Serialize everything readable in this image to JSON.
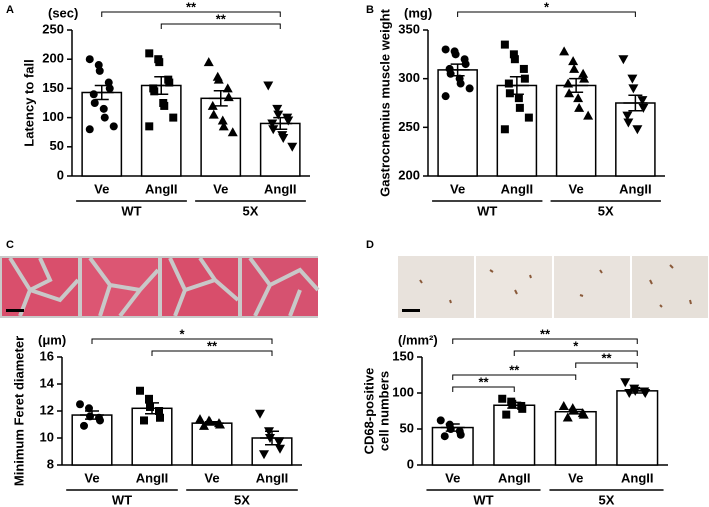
{
  "chart_data": [
    {
      "type": "bar",
      "panel": "A",
      "y_label": "Latency to fall",
      "y_unit": "(sec)",
      "categories": [
        "Ve",
        "AngII",
        "Ve",
        "AngII"
      ],
      "groups": [
        "WT",
        "5X"
      ],
      "markers": [
        "circle",
        "square",
        "triangle",
        "triangle-down"
      ],
      "values": [
        143,
        155,
        133,
        90
      ],
      "errors": [
        12,
        15,
        13,
        10
      ],
      "points": [
        [
          200,
          190,
          180,
          160,
          150,
          140,
          125,
          115,
          100,
          85,
          80
        ],
        [
          210,
          200,
          195,
          165,
          160,
          150,
          145,
          125,
          120,
          100,
          85
        ],
        [
          195,
          170,
          165,
          150,
          135,
          120,
          105,
          95,
          85,
          75
        ],
        [
          155,
          115,
          105,
          100,
          95,
          90,
          80,
          70,
          65,
          50
        ]
      ],
      "significance": [
        {
          "from": 0,
          "to": 3,
          "label": "**"
        },
        {
          "from": 1,
          "to": 3,
          "label": "**"
        }
      ],
      "ylim": [
        0,
        250
      ],
      "yticks": [
        0,
        50,
        100,
        150,
        200,
        250
      ]
    },
    {
      "type": "bar",
      "panel": "B",
      "y_label": "Gastrocnemius muscle weight",
      "y_unit": "(mg)",
      "categories": [
        "Ve",
        "AngII",
        "Ve",
        "AngII"
      ],
      "groups": [
        "WT",
        "5X"
      ],
      "markers": [
        "circle",
        "square",
        "triangle",
        "triangle-down"
      ],
      "values": [
        309,
        293,
        293,
        275
      ],
      "errors": [
        6,
        9,
        7,
        8
      ],
      "points": [
        [
          330,
          328,
          325,
          320,
          315,
          310,
          305,
          300,
          295,
          290,
          282
        ],
        [
          335,
          325,
          320,
          310,
          300,
          295,
          285,
          280,
          270,
          260,
          248
        ],
        [
          328,
          318,
          310,
          305,
          300,
          295,
          285,
          280,
          270,
          262
        ],
        [
          320,
          300,
          290,
          278,
          270,
          262,
          255,
          248
        ]
      ],
      "significance": [
        {
          "from": 0,
          "to": 3,
          "label": "*"
        }
      ],
      "ylim": [
        200,
        350
      ],
      "yticks": [
        200,
        250,
        300,
        350
      ]
    },
    {
      "type": "bar",
      "panel": "C",
      "y_label": "Minimum Feret diameter",
      "y_unit": "(μm)",
      "categories": [
        "Ve",
        "AngII",
        "Ve",
        "AngII"
      ],
      "groups": [
        "WT",
        "5X"
      ],
      "markers": [
        "circle",
        "square",
        "triangle",
        "triangle-down"
      ],
      "values": [
        11.7,
        12.2,
        11.1,
        10.0
      ],
      "errors": [
        0.3,
        0.4,
        0.1,
        0.5
      ],
      "points": [
        [
          12.5,
          12.2,
          11.6,
          11.5,
          11.3,
          10.9
        ],
        [
          13.5,
          12.9,
          12.3,
          12.0,
          11.5,
          11.3
        ],
        [
          11.4,
          11.3,
          11.2,
          11.1,
          11.0,
          10.9
        ],
        [
          11.8,
          10.5,
          10.0,
          9.7,
          9.2,
          8.8
        ]
      ],
      "significance": [
        {
          "from": 0,
          "to": 3,
          "label": "*"
        },
        {
          "from": 1,
          "to": 3,
          "label": "**"
        }
      ],
      "ylim": [
        8,
        16
      ],
      "yticks": [
        8,
        10,
        12,
        14,
        16
      ]
    },
    {
      "type": "bar",
      "panel": "D",
      "y_label": [
        "CD68-positive",
        "cell numbers"
      ],
      "y_unit": "(/mm²)",
      "categories": [
        "Ve",
        "AngII",
        "Ve",
        "AngII"
      ],
      "groups": [
        "WT",
        "5X"
      ],
      "markers": [
        "circle",
        "square",
        "triangle",
        "triangle-down"
      ],
      "values": [
        52,
        83,
        74,
        103
      ],
      "errors": [
        5,
        4,
        3,
        3
      ],
      "points": [
        [
          62,
          56,
          50,
          47,
          42,
          40
        ],
        [
          92,
          88,
          85,
          82,
          78,
          70
        ],
        [
          82,
          79,
          76,
          72,
          70,
          66
        ],
        [
          115,
          106,
          103,
          102,
          100,
          100
        ]
      ],
      "significance": [
        {
          "from": 0,
          "to": 3,
          "label": "**"
        },
        {
          "from": 1,
          "to": 3,
          "label": "*"
        },
        {
          "from": 2,
          "to": 3,
          "label": "**"
        },
        {
          "from": 0,
          "to": 2,
          "label": "**"
        },
        {
          "from": 0,
          "to": 1,
          "label": "**"
        }
      ],
      "ylim": [
        0,
        150
      ],
      "yticks": [
        0,
        50,
        100,
        150
      ]
    }
  ]
}
